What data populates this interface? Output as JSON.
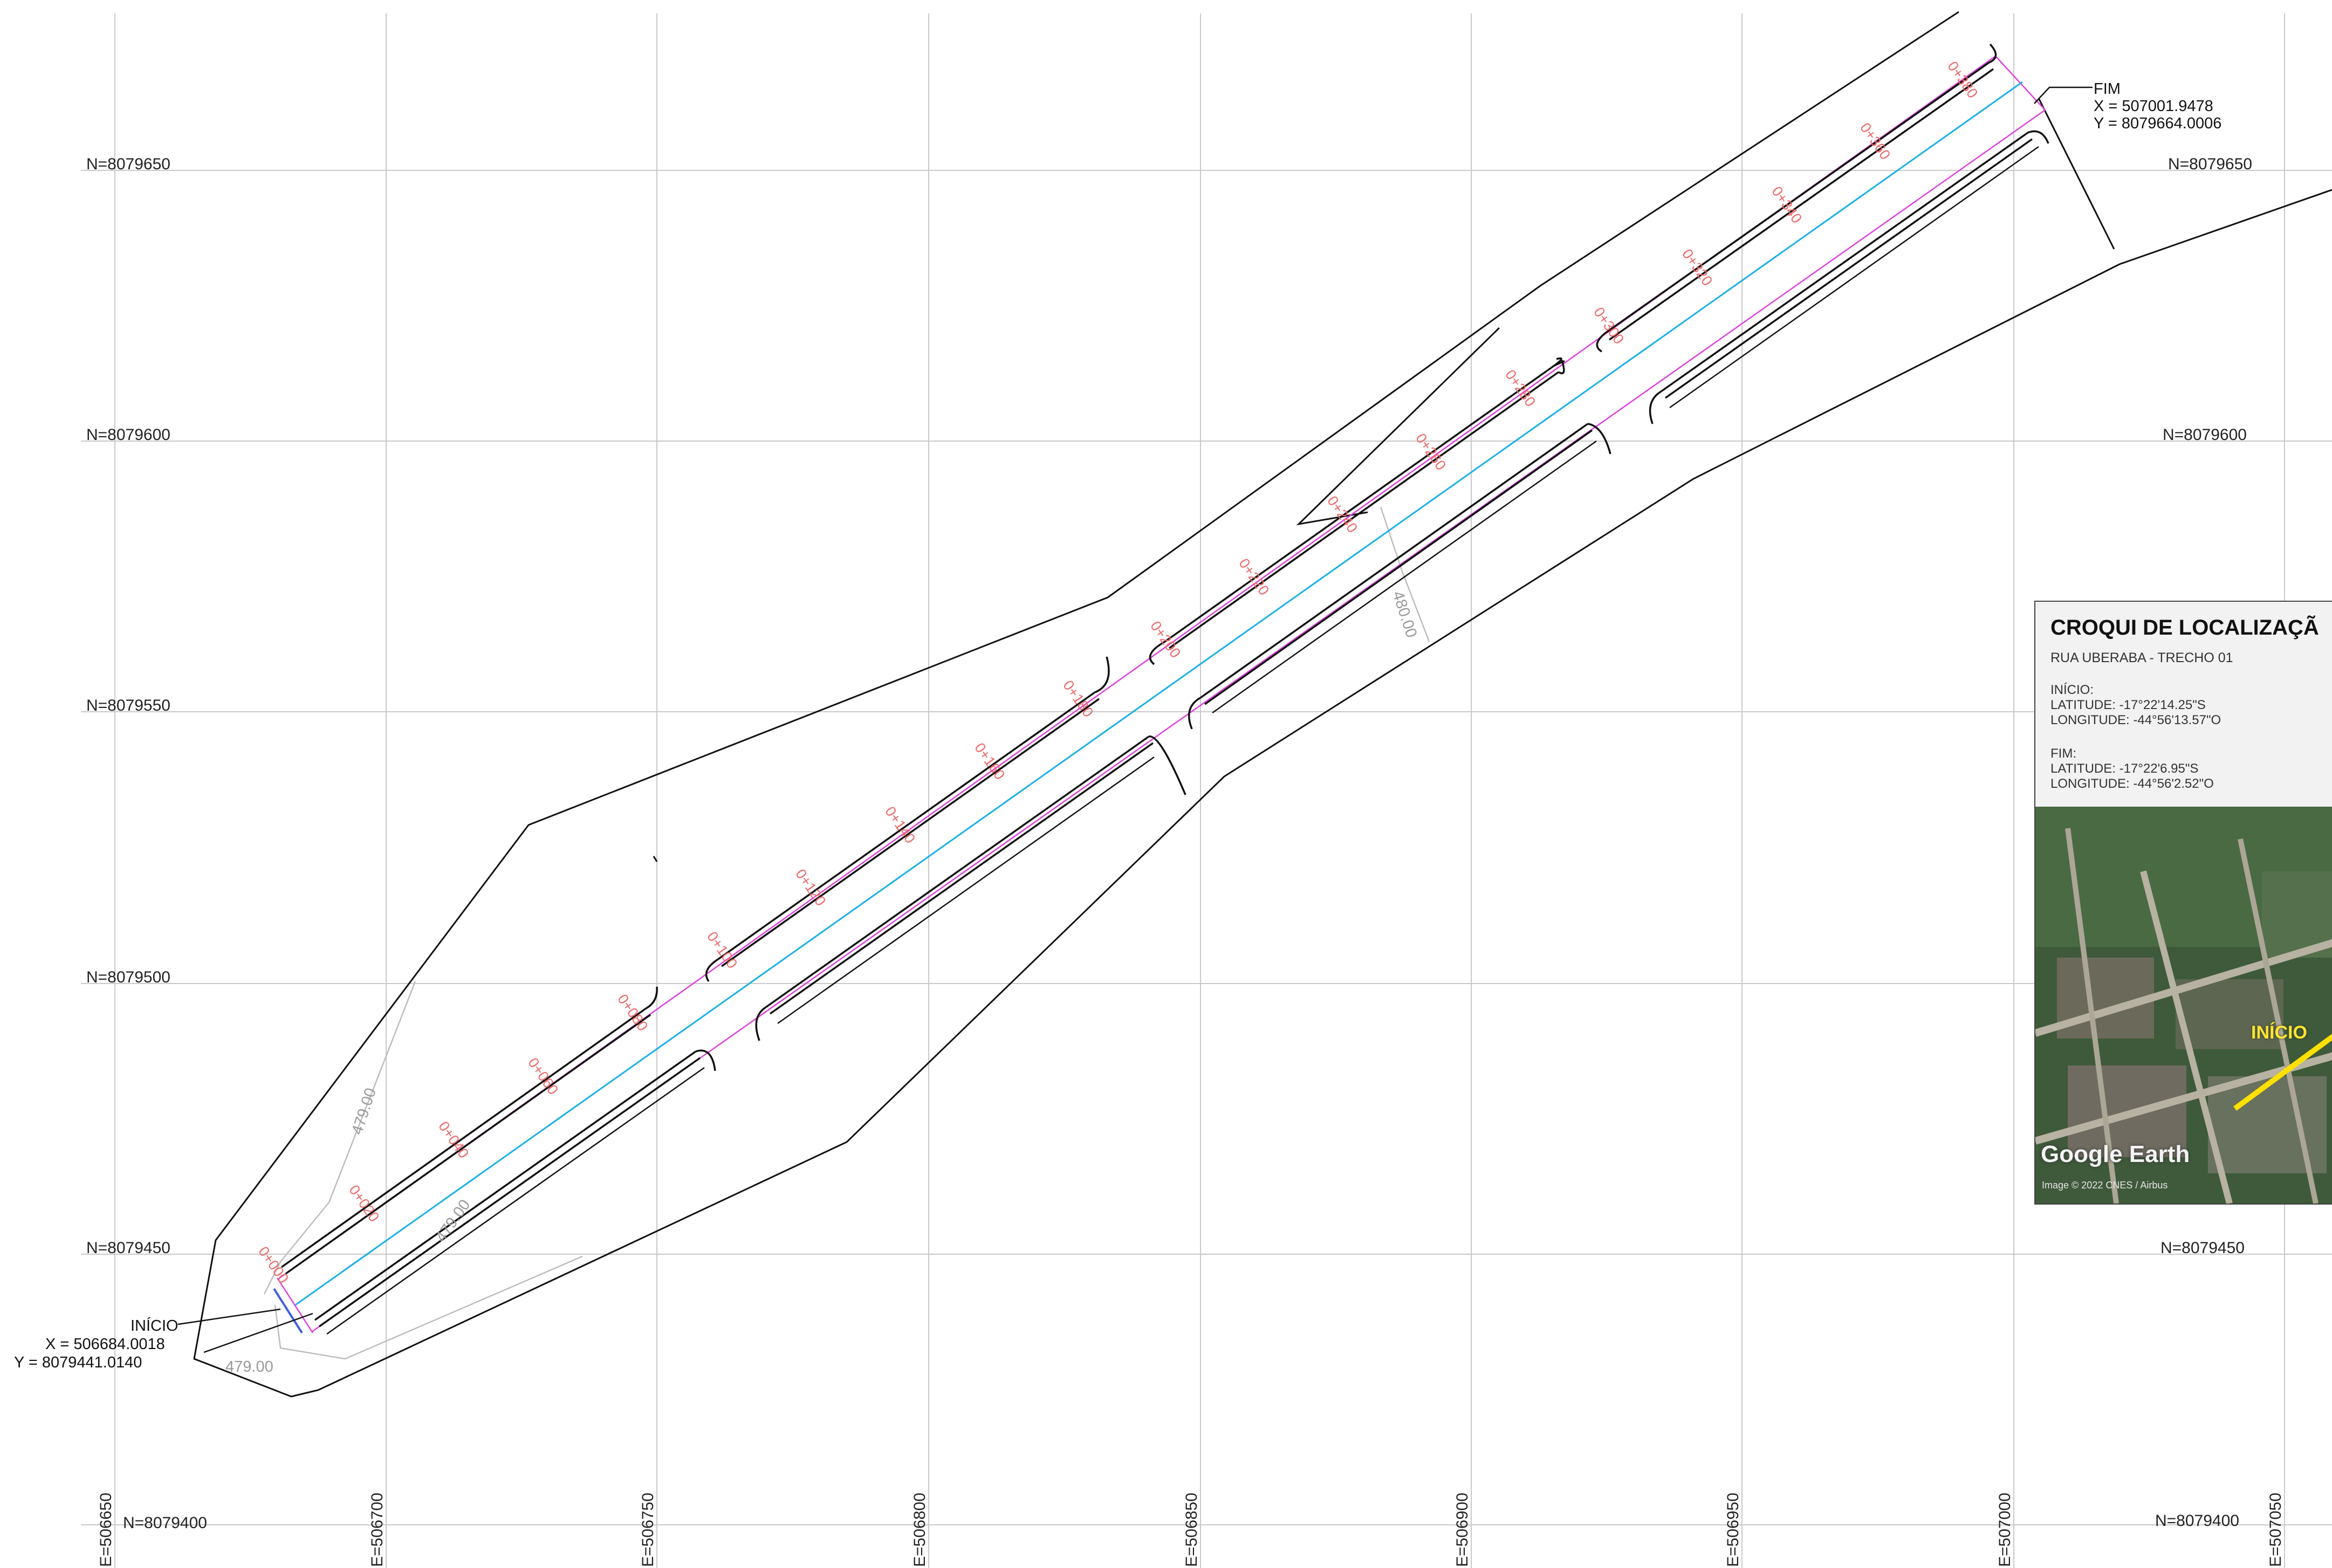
{
  "grid": {
    "northing_labels": [
      "N=8079650",
      "N=8079600",
      "N=8079550",
      "N=8079500",
      "N=8079450",
      "N=8079400"
    ],
    "easting_labels": [
      "E=506650",
      "E=506700",
      "E=506750",
      "E=506800",
      "E=506850",
      "E=506900",
      "E=506950",
      "E=507000",
      "E=507050"
    ]
  },
  "inicio": {
    "label": "INÍCIO",
    "x": "X  =  506684.0018",
    "y": "Y  =  8079441.0140"
  },
  "fim": {
    "label": "FIM",
    "x": "X  =  507001.9478",
    "y": "Y  =  8079664.0006"
  },
  "stations": [
    "0+000",
    "0+020",
    "0+040",
    "0+060",
    "0+080",
    "0+100",
    "0+120",
    "0+140",
    "0+160",
    "0+180",
    "0+200",
    "0+220",
    "0+240",
    "0+260",
    "0+280",
    "0+300",
    "0+320",
    "0+340",
    "0+360",
    "0+380"
  ],
  "elevations": {
    "e1": "479.00",
    "e2": "479.00",
    "e3": "479.00",
    "e4": "480.00"
  },
  "croqui": {
    "title": "CROQUI DE LOCALIZAÇÃ",
    "subtitle": "RUA UBERABA - TRECHO 01",
    "inicio_label": "INÍCIO:",
    "inicio_lat": "LATITUDE: -17°22'14.25\"S",
    "inicio_lon": "LONGITUDE: -44°56'13.57\"O",
    "fim_label": "FIM:",
    "fim_lat": "LATITUDE: -17°22'6.95\"S",
    "fim_lon": "LONGITUDE: -44°56'2.52\"O",
    "map_inicio": "INÍCIO",
    "watermark": "Google Earth",
    "credit": "Image © 2022 CNES / Airbus"
  },
  "colors": {
    "centerline": "#1ab0e8",
    "right_of_way": "#e040e0",
    "station_text": "#ee6a6a",
    "curb": "#111111",
    "grid": "#c9c9c9"
  }
}
